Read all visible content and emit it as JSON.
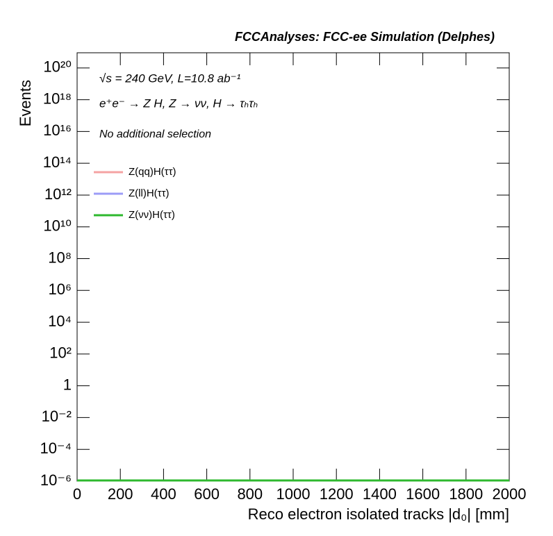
{
  "chart_data": {
    "type": "histogram",
    "title": "FCCAnalyses: FCC-ee Simulation (Delphes)",
    "x_label": "Reco electron isolated tracks |d₀| [mm]",
    "y_label": "Events",
    "annotations": [
      "√s = 240 GeV, L=10.8 ab⁻¹",
      "e⁺e⁻ → Z H, Z → νν, H → τₕτₕ",
      "No additional selection"
    ],
    "bins": [
      0,
      2000
    ],
    "series": [
      {
        "name": "Z(qq)H(ττ)",
        "color": "#f5a3a3",
        "values": [
          0
        ]
      },
      {
        "name": "Z(ll)H(ττ)",
        "color": "#9c9cf7",
        "values": [
          0
        ]
      },
      {
        "name": "Z(νν)H(ττ)",
        "color": "#2eb82e",
        "values": [
          0
        ]
      }
    ],
    "log_y": true,
    "xlim": [
      0,
      2000
    ],
    "xticks": [
      0,
      200,
      400,
      600,
      800,
      1000,
      1200,
      1400,
      1600,
      1800,
      2000
    ],
    "ylim": [
      1e-06,
      9e+20
    ],
    "yticks": [
      {
        "value": 1e-06,
        "label": "10⁻⁶"
      },
      {
        "value": 0.0001,
        "label": "10⁻⁴"
      },
      {
        "value": 0.01,
        "label": "10⁻²"
      },
      1,
      {
        "value": 100,
        "label": "10²"
      },
      {
        "value": 10000,
        "label": "10⁴"
      },
      {
        "value": 1000000,
        "label": "10⁶"
      },
      {
        "value": 100000000,
        "label": "10⁸"
      },
      {
        "value": 10000000000,
        "label": "10¹⁰"
      },
      {
        "value": 1000000000000,
        "label": "10¹²"
      },
      {
        "value": 100000000000000,
        "label": "10¹⁴"
      },
      {
        "value": 10000000000000000,
        "label": "10¹⁶"
      },
      {
        "value": 1000000000000000000,
        "label": "10¹⁸"
      },
      {
        "value": 100000000000000000000,
        "label": "10²⁰"
      }
    ],
    "legend": "upper left"
  }
}
